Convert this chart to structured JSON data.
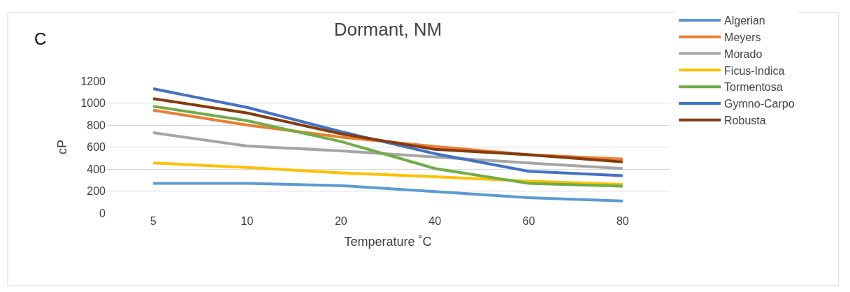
{
  "chart_data": {
    "type": "line",
    "title": "Dormant, NM",
    "xlabel": "Temperature ˚C",
    "ylabel": "cP",
    "annotations": [
      "C"
    ],
    "categories": [
      "5",
      "10",
      "20",
      "40",
      "60",
      "80"
    ],
    "ylim": [
      0,
      1200
    ],
    "yticks": [
      0,
      200,
      400,
      600,
      800,
      1000,
      1200
    ],
    "grid": "y",
    "legend": "right",
    "marker": "none",
    "line_style": "solid",
    "series": [
      {
        "name": "Algerian",
        "color": "#5b9bd5",
        "values": [
          270,
          270,
          250,
          195,
          140,
          110
        ]
      },
      {
        "name": "Meyers",
        "color": "#ed7d31",
        "values": [
          935,
          800,
          690,
          605,
          530,
          490
        ]
      },
      {
        "name": "Morado",
        "color": "#a5a5a5",
        "values": [
          730,
          610,
          565,
          510,
          455,
          405
        ]
      },
      {
        "name": "Ficus-Indica",
        "color": "#ffc000",
        "values": [
          455,
          415,
          365,
          330,
          290,
          260
        ]
      },
      {
        "name": "Tormentosa",
        "color": "#70ad47",
        "values": [
          970,
          840,
          650,
          405,
          270,
          245
        ]
      },
      {
        "name": "Gymno-Carpo",
        "color": "#4472c4",
        "values": [
          1130,
          960,
          740,
          540,
          380,
          340
        ]
      },
      {
        "name": "Robusta",
        "color": "#843c0c",
        "values": [
          1040,
          910,
          720,
          580,
          530,
          465
        ]
      }
    ]
  }
}
